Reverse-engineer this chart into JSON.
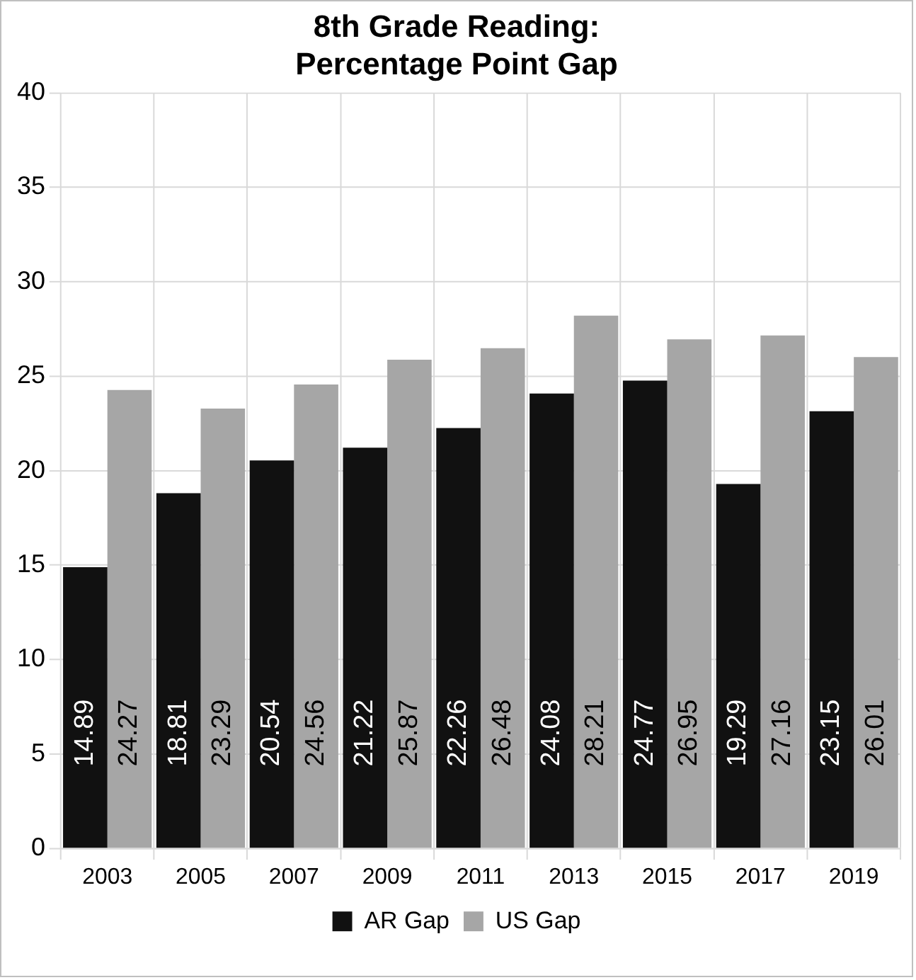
{
  "chart_data": {
    "type": "bar",
    "title": "8th Grade Reading:\nPercentage Point Gap",
    "categories": [
      "2003",
      "2005",
      "2007",
      "2009",
      "2011",
      "2013",
      "2015",
      "2017",
      "2019"
    ],
    "series": [
      {
        "name": "AR Gap",
        "color": "#111111",
        "values": [
          14.89,
          18.81,
          20.54,
          21.22,
          22.26,
          24.08,
          24.77,
          19.29,
          23.15
        ]
      },
      {
        "name": "US Gap",
        "color": "#a6a6a6",
        "values": [
          24.27,
          23.29,
          24.56,
          25.87,
          26.48,
          28.21,
          26.95,
          27.16,
          26.01
        ]
      }
    ],
    "ylim": [
      0,
      40
    ],
    "yticks": [
      0,
      5,
      10,
      15,
      20,
      25,
      30,
      35,
      40
    ],
    "grid": true,
    "legend": "bottom",
    "data_labels": true
  }
}
